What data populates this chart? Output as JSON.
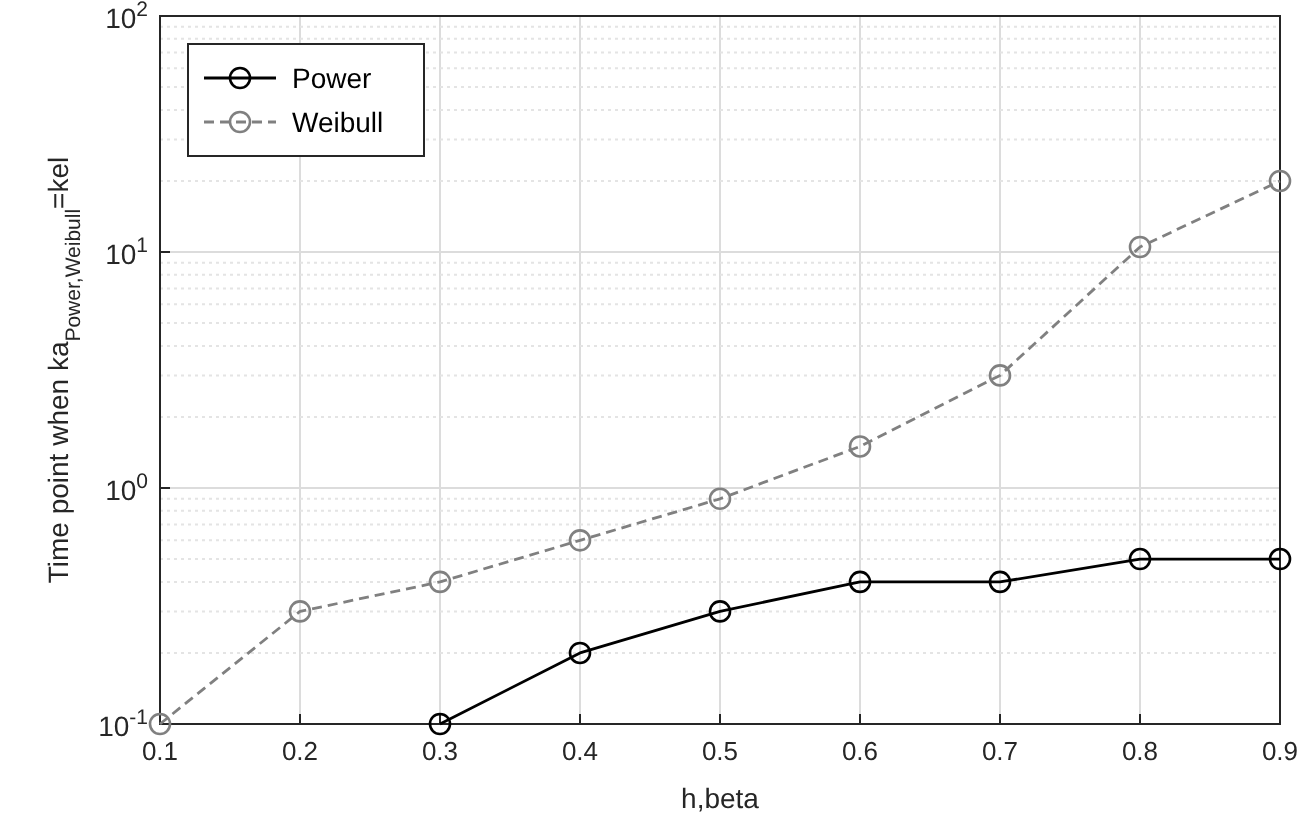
{
  "chart_data": {
    "type": "line",
    "xlabel": "h,beta",
    "ylabel": "Time point when ka$_{Power,Weibull}$=kel",
    "xlim": [
      0.1,
      0.9
    ],
    "xticks": [
      0.1,
      0.2,
      0.3,
      0.4,
      0.5,
      0.6,
      0.7,
      0.8,
      0.9
    ],
    "ylim": [
      0.1,
      100
    ],
    "yticks": [
      {
        "value": 0.1,
        "label": "10$^{-1}$"
      },
      {
        "value": 1,
        "label": "10$^{0}$"
      },
      {
        "value": 10,
        "label": "10$^{1}$"
      },
      {
        "value": 100,
        "label": "10$^{2}$"
      }
    ],
    "log": "y",
    "grid": true,
    "legend": "top left",
    "marker": "circle",
    "series": [
      {
        "name": "Power",
        "color": "#000000",
        "line_style": "solid",
        "x": [
          0.3,
          0.4,
          0.5,
          0.6,
          0.7,
          0.8,
          0.9
        ],
        "values": [
          0.1,
          0.2,
          0.3,
          0.4,
          0.4,
          0.5,
          0.5
        ]
      },
      {
        "name": "Weibull",
        "color": "#808080",
        "line_style": "dashed",
        "x": [
          0.1,
          0.2,
          0.3,
          0.4,
          0.5,
          0.6,
          0.7,
          0.8,
          0.9
        ],
        "values": [
          0.1,
          0.3,
          0.4,
          0.6,
          0.9,
          1.5,
          3,
          10.5,
          20
        ]
      }
    ]
  }
}
